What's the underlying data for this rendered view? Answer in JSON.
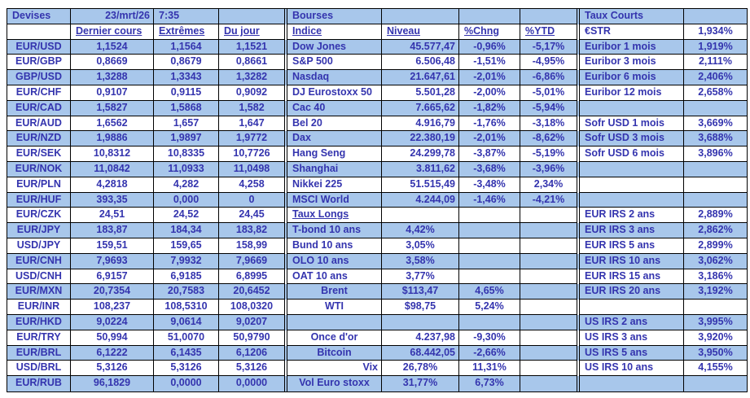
{
  "devises": {
    "title": "Devises",
    "date": "23/mrt/26",
    "time": "7:35",
    "columns": [
      "Dernier cours",
      "Extrêmes",
      "Du jour"
    ],
    "rows": [
      {
        "pair": "EUR/USD",
        "dernier": "1,1524",
        "extremes": "1,1564",
        "dujour": "1,1521"
      },
      {
        "pair": "EUR/GBP",
        "dernier": "0,8669",
        "extremes": "0,8679",
        "dujour": "0,8661"
      },
      {
        "pair": "GBP/USD",
        "dernier": "1,3288",
        "extremes": "1,3343",
        "dujour": "1,3282"
      },
      {
        "pair": "EUR/CHF",
        "dernier": "0,9107",
        "extremes": "0,9115",
        "dujour": "0,9092"
      },
      {
        "pair": "EUR/CAD",
        "dernier": "1,5827",
        "extremes": "1,5868",
        "dujour": "1,582"
      },
      {
        "pair": "EUR/AUD",
        "dernier": "1,6562",
        "extremes": "1,657",
        "dujour": "1,647"
      },
      {
        "pair": "EUR/NZD",
        "dernier": "1,9886",
        "extremes": "1,9897",
        "dujour": "1,9772"
      },
      {
        "pair": "EUR/SEK",
        "dernier": "10,8312",
        "extremes": "10,8335",
        "dujour": "10,7726"
      },
      {
        "pair": "EUR/NOK",
        "dernier": "11,0842",
        "extremes": "11,0933",
        "dujour": "11,0498"
      },
      {
        "pair": "EUR/PLN",
        "dernier": "4,2818",
        "extremes": "4,282",
        "dujour": "4,258"
      },
      {
        "pair": "EUR/HUF",
        "dernier": "393,35",
        "extremes": "0,000",
        "dujour": "0"
      },
      {
        "pair": "EUR/CZK",
        "dernier": "24,51",
        "extremes": "24,52",
        "dujour": "24,45"
      },
      {
        "pair": "EUR/JPY",
        "dernier": "183,87",
        "extremes": "184,34",
        "dujour": "183,82"
      },
      {
        "pair": "USD/JPY",
        "dernier": "159,51",
        "extremes": "159,65",
        "dujour": "158,99"
      },
      {
        "pair": "EUR/CNH",
        "dernier": "7,9693",
        "extremes": "7,9932",
        "dujour": "7,9669"
      },
      {
        "pair": "USD/CNH",
        "dernier": "6,9157",
        "extremes": "6,9185",
        "dujour": "6,8995"
      },
      {
        "pair": "EUR/MXN",
        "dernier": "20,7354",
        "extremes": "20,7583",
        "dujour": "20,6452"
      },
      {
        "pair": "EUR/INR",
        "dernier": "108,237",
        "extremes": "108,5310",
        "dujour": "108,0320"
      },
      {
        "pair": "EUR/HKD",
        "dernier": "9,0224",
        "extremes": "9,0614",
        "dujour": "9,0207"
      },
      {
        "pair": "EUR/TRY",
        "dernier": "50,994",
        "extremes": "51,0070",
        "dujour": "50,9790"
      },
      {
        "pair": "EUR/BRL",
        "dernier": "6,1222",
        "extremes": "6,1435",
        "dujour": "6,1206"
      },
      {
        "pair": "USD/BRL",
        "dernier": "5,3126",
        "extremes": "5,3126",
        "dujour": "5,3126"
      },
      {
        "pair": "EUR/RUB",
        "dernier": "96,1829",
        "extremes": "0,0000",
        "dujour": "0,0000"
      }
    ]
  },
  "bourses": {
    "title": "Bourses",
    "columns": [
      "Indice",
      "Niveau",
      "%Chng",
      "%YTD"
    ],
    "rows": [
      {
        "label": "Dow Jones",
        "niveau": "45.577,47",
        "chng": "-0,96%",
        "ytd": "-5,17%"
      },
      {
        "label": "S&P 500",
        "niveau": "6.506,48",
        "chng": "-1,51%",
        "ytd": "-4,95%"
      },
      {
        "label": "Nasdaq",
        "niveau": "21.647,61",
        "chng": "-2,01%",
        "ytd": "-6,86%"
      },
      {
        "label": "DJ Eurostoxx 50",
        "niveau": "5.501,28",
        "chng": "-2,00%",
        "ytd": "-5,01%"
      },
      {
        "label": "Cac 40",
        "niveau": "7.665,62",
        "chng": "-1,82%",
        "ytd": "-5,94%"
      },
      {
        "label": "Bel 20",
        "niveau": "4.916,79",
        "chng": "-1,76%",
        "ytd": "-3,18%"
      },
      {
        "label": "Dax",
        "niveau": "22.380,19",
        "chng": "-2,01%",
        "ytd": "-8,62%"
      },
      {
        "label": "Hang Seng",
        "niveau": "24.299,78",
        "chng": "-3,87%",
        "ytd": "-5,19%"
      },
      {
        "label": "Shanghai",
        "niveau": "3.811,62",
        "chng": "-3,68%",
        "ytd": "-3,96%"
      },
      {
        "label": "Nikkei 225",
        "niveau": "51.515,49",
        "chng": "-3,48%",
        "ytd": "2,34%"
      },
      {
        "label": "MSCI World",
        "niveau": "4.244,09",
        "chng": "-1,46%",
        "ytd": "-4,21%"
      },
      {
        "label": "Taux Longs"
      },
      {
        "label": "T-bond 10 ans",
        "niveau": "4,42%"
      },
      {
        "label": "Bund 10 ans",
        "niveau": "3,05%"
      },
      {
        "label": "OLO 10 ans",
        "niveau": "3,58%"
      },
      {
        "label": "OAT 10 ans",
        "niveau": "3,77%"
      },
      {
        "label": "Brent",
        "niveau": "$113,47",
        "chng": "4,65%"
      },
      {
        "label": "WTI",
        "niveau": "$98,75",
        "chng": "5,24%"
      },
      {
        "label": ""
      },
      {
        "label": "Once d'or",
        "niveau": "4.237,98",
        "chng": "-9,30%"
      },
      {
        "label": "Bitcoin",
        "niveau": "68.442,05",
        "chng": "-2,66%"
      },
      {
        "label": "Vix",
        "niveau": "26,78%",
        "chng": "11,31%"
      },
      {
        "label": "Vol Euro stoxx",
        "niveau": "31,77%",
        "chng": "6,73%"
      }
    ]
  },
  "taux_courts": {
    "title": "Taux Courts",
    "rows": [
      {
        "label": "€STR",
        "value": "1,934%"
      },
      {
        "label": "Euribor 1 mois",
        "value": "1,919%"
      },
      {
        "label": "Euribor 3 mois",
        "value": "2,111%"
      },
      {
        "label": "Euribor 6 mois",
        "value": "2,406%"
      },
      {
        "label": "Euribor 12 mois",
        "value": "2,658%"
      },
      {
        "label": ""
      },
      {
        "label": "Sofr USD 1 mois",
        "value": "3,669%"
      },
      {
        "label": "Sofr USD 3 mois",
        "value": "3,688%"
      },
      {
        "label": "Sofr USD 6 mois",
        "value": "3,896%"
      },
      {
        "label": ""
      },
      {
        "label": ""
      },
      {
        "label": ""
      },
      {
        "label": "EUR IRS 2 ans",
        "value": "2,889%"
      },
      {
        "label": "EUR IRS 3 ans",
        "value": "2,862%"
      },
      {
        "label": "EUR IRS 5 ans",
        "value": "2,899%"
      },
      {
        "label": "EUR IRS 10 ans",
        "value": "3,062%"
      },
      {
        "label": "EUR IRS 15 ans",
        "value": "3,186%"
      },
      {
        "label": "EUR IRS 20 ans",
        "value": "3,192%"
      },
      {
        "label": ""
      },
      {
        "label": "US IRS 2 ans",
        "value": "3,995%"
      },
      {
        "label": "US IRS 3 ans",
        "value": "3,920%"
      },
      {
        "label": "US IRS 5 ans",
        "value": "3,950%"
      },
      {
        "label": "US IRS 10 ans",
        "value": "4,155%"
      },
      {
        "label": ""
      }
    ]
  },
  "colors": {
    "row_blue": "#A8C7EB",
    "text_blue": "#3434AE",
    "border": "#000000",
    "background": "#FFFFFF"
  }
}
